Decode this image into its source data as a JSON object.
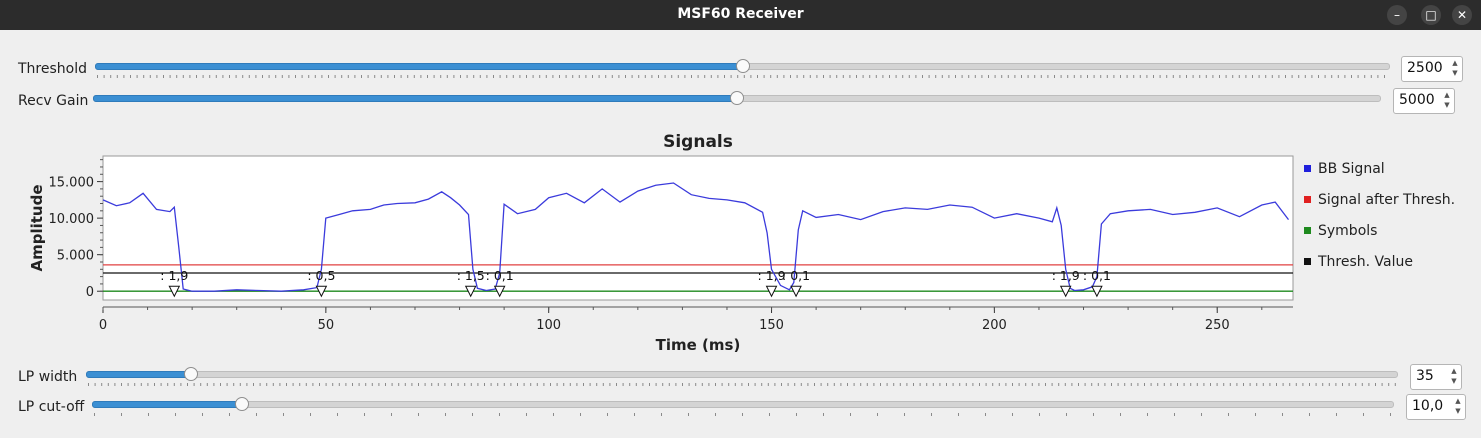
{
  "window": {
    "title": "MSF60 Receiver"
  },
  "controls": {
    "threshold": {
      "label": "Threshold",
      "value": "2500",
      "fraction": 0.5
    },
    "recv_gain": {
      "label": "Recv Gain",
      "value": "5000",
      "fraction": 0.5
    },
    "lp_width": {
      "label": "LP width",
      "value": "35",
      "fraction": 0.08
    },
    "lp_cutoff": {
      "label": "LP cut-off",
      "value": "10,0",
      "fraction": 0.115
    }
  },
  "chart_data": {
    "type": "line",
    "title": "Signals",
    "xlabel": "Time (ms)",
    "ylabel": "Amplitude",
    "xlim": [
      0,
      267
    ],
    "ylim": [
      -1200,
      18500
    ],
    "x_ticks": [
      0,
      50,
      100,
      150,
      200,
      250
    ],
    "y_ticks": [
      0,
      5000,
      10000,
      15000
    ],
    "y_tick_labels": [
      "0",
      "5.000",
      "10.000",
      "15.000"
    ],
    "x_tick_labels": [
      "0",
      "50",
      "100",
      "150",
      "200",
      "250"
    ],
    "legend_placement": "right",
    "series": [
      {
        "name": "BB Signal",
        "color": "#3b3bdc",
        "x": [
          0,
          3,
          6,
          9,
          12,
          15,
          16,
          17,
          18,
          20,
          25,
          30,
          35,
          40,
          45,
          48,
          49,
          50,
          53,
          56,
          60,
          63,
          66,
          70,
          73,
          76,
          78,
          80,
          82,
          83,
          84,
          86,
          88,
          89,
          90,
          93,
          97,
          100,
          104,
          108,
          112,
          116,
          120,
          124,
          128,
          132,
          136,
          140,
          144,
          148,
          149,
          150,
          152,
          154,
          155,
          156,
          157,
          160,
          165,
          170,
          175,
          180,
          185,
          190,
          195,
          200,
          205,
          210,
          213,
          214,
          215,
          216,
          217,
          218,
          220,
          222,
          223,
          224,
          226,
          230,
          235,
          240,
          245,
          250,
          255,
          260,
          263,
          266
        ],
        "y": [
          12500,
          11700,
          12100,
          13400,
          11200,
          10900,
          11500,
          6000,
          300,
          0,
          0,
          200,
          100,
          0,
          200,
          500,
          3000,
          10000,
          10500,
          11000,
          11200,
          11800,
          12000,
          12100,
          12600,
          13600,
          12800,
          11800,
          10500,
          3000,
          400,
          100,
          300,
          2500,
          11900,
          10600,
          11200,
          12800,
          13400,
          12100,
          14000,
          12200,
          13700,
          14500,
          14800,
          13200,
          12700,
          12500,
          12100,
          10800,
          8000,
          3000,
          800,
          200,
          1200,
          8400,
          11000,
          10100,
          10500,
          9800,
          10900,
          11400,
          11200,
          11800,
          11500,
          10000,
          10600,
          10000,
          9500,
          11400,
          9000,
          3000,
          400,
          100,
          200,
          600,
          2000,
          9200,
          10600,
          11000,
          11200,
          10500,
          10800,
          11400,
          10200,
          11800,
          12200,
          9800
        ]
      },
      {
        "name": "Signal after Thresh.",
        "color": "#e04040",
        "x": [
          0,
          267
        ],
        "y": [
          3600,
          3600
        ]
      },
      {
        "name": "Symbols",
        "color": "#1e8a1e",
        "x": [
          0,
          267
        ],
        "y": [
          0,
          0
        ]
      },
      {
        "name": "Thresh. Value",
        "color": "#111111",
        "x": [
          0,
          267
        ],
        "y": [
          2500,
          2500
        ]
      }
    ],
    "annotations": [
      {
        "x": 16,
        "text": ": 1,9"
      },
      {
        "x": 49,
        "text": ": 0,5"
      },
      {
        "x": 82.5,
        "text": ": 1,5"
      },
      {
        "x": 89,
        "text": ": 0,1"
      },
      {
        "x": 150,
        "text": ": 1,9"
      },
      {
        "x": 155.5,
        "text": ": 0,1"
      },
      {
        "x": 216,
        "text": ": 1,9"
      },
      {
        "x": 223,
        "text": ": 0,1"
      }
    ]
  }
}
